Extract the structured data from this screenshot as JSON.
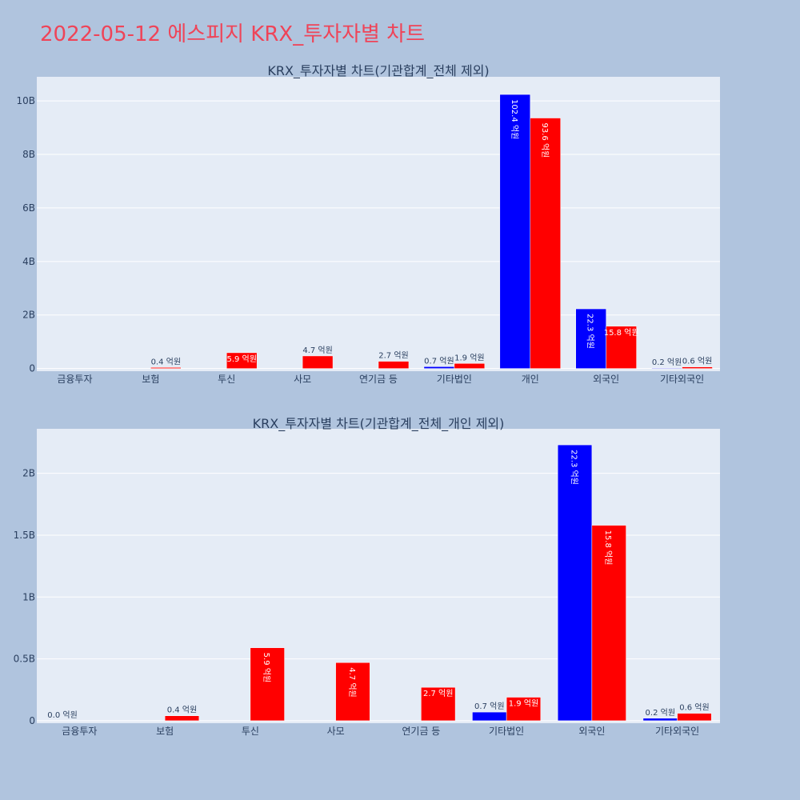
{
  "title": "2022-05-12 에스피지 KRX_투자자별 차트",
  "colors": {
    "series_blue": "#0000ff",
    "series_red": "#ff0000",
    "plot_bg": "#e5ecf6",
    "paper_bg": "#b0c4de",
    "title": "#ef4458"
  },
  "chart_data": [
    {
      "type": "bar",
      "title": "KRX_투자자별 차트(기관합계_전체 제외)",
      "categories": [
        "금융투자",
        "보험",
        "투신",
        "사모",
        "연기금 등",
        "기타법인",
        "개인",
        "외국인",
        "기타외국인"
      ],
      "series": [
        {
          "color": "blue",
          "values": [
            0,
            0,
            0,
            0,
            0,
            70000000,
            10240000000,
            2230000000,
            20000000
          ],
          "labels": [
            "",
            "",
            "",
            "",
            "",
            "0.7 억원",
            "102.4 억원",
            "22.3 억원",
            "0.2 억원"
          ]
        },
        {
          "color": "red",
          "values": [
            0,
            40000000,
            590000000,
            470000000,
            270000000,
            190000000,
            9360000000,
            1580000000,
            60000000
          ],
          "labels": [
            "",
            "0.4 억원",
            "5.9 억원",
            "4.7 억원",
            "2.7 억원",
            "1.9 억원",
            "93.6 억원",
            "15.8 억원",
            "0.6 억원"
          ]
        }
      ],
      "yticks": [
        "0",
        "2B",
        "4B",
        "6B",
        "8B",
        "10B"
      ],
      "ytick_values": [
        0,
        2000000000,
        4000000000,
        6000000000,
        8000000000,
        10000000000
      ],
      "ylim": [
        -100000000,
        10900000000
      ],
      "grid": true,
      "legend": "none"
    },
    {
      "type": "bar",
      "title": "KRX_투자자별 차트(기관합계_전체_개인 제외)",
      "categories": [
        "금융투자",
        "보험",
        "투신",
        "사모",
        "연기금 등",
        "기타법인",
        "외국인",
        "기타외국인"
      ],
      "series": [
        {
          "color": "blue",
          "values": [
            0,
            0,
            0,
            0,
            0,
            70000000,
            2230000000,
            20000000
          ],
          "labels": [
            "0.0 억원",
            "",
            "",
            "",
            "",
            "0.7 억원",
            "22.3 억원",
            "0.2 억원"
          ]
        },
        {
          "color": "red",
          "values": [
            0,
            40000000,
            590000000,
            470000000,
            270000000,
            190000000,
            1580000000,
            60000000
          ],
          "labels": [
            "",
            "0.4 억원",
            "5.9 억원",
            "4.7 억원",
            "2.7 억원",
            "1.9 억원",
            "15.8 억원",
            "0.6 억원"
          ]
        }
      ],
      "yticks": [
        "0",
        "0.5B",
        "1B",
        "1.5B",
        "2B"
      ],
      "ytick_values": [
        0,
        500000000,
        1000000000,
        1500000000,
        2000000000
      ],
      "ylim": [
        -20000000,
        2360000000
      ],
      "grid": true,
      "legend": "none"
    }
  ]
}
